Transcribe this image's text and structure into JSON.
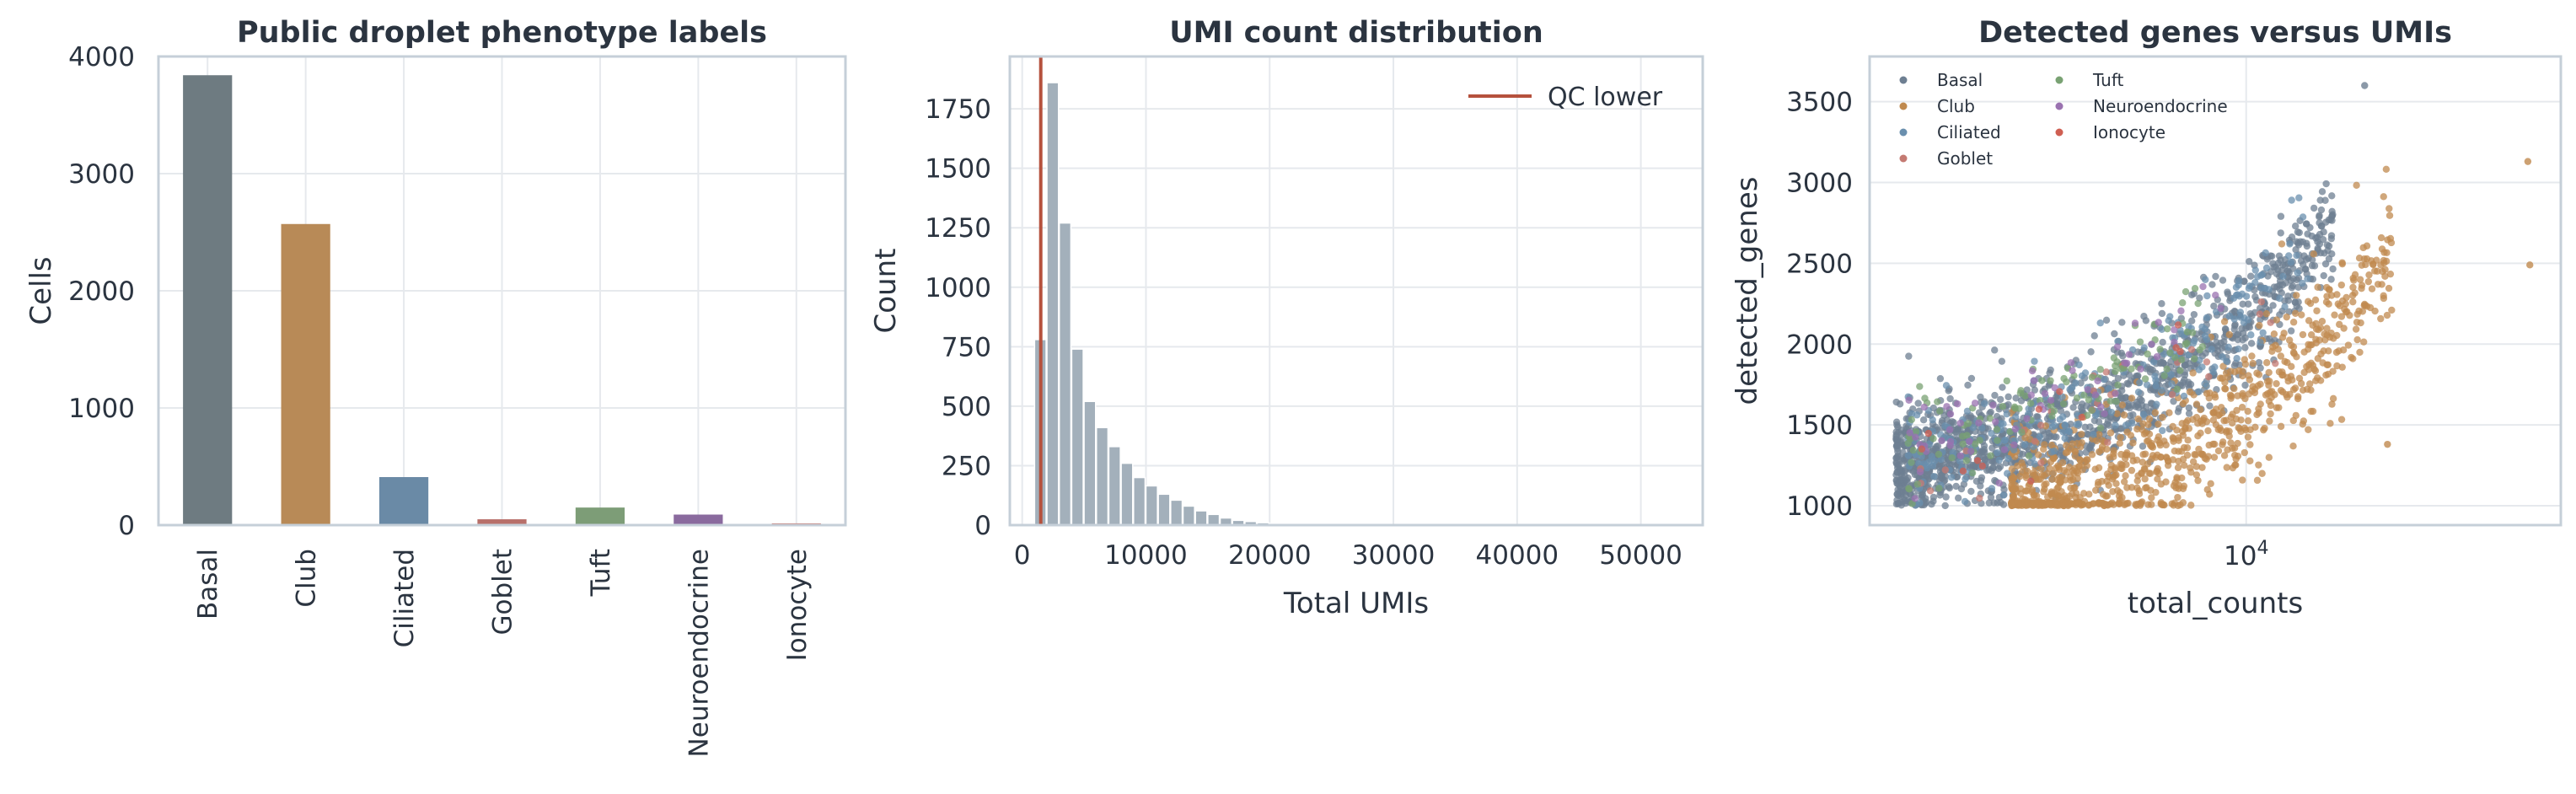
{
  "chart_data": [
    {
      "type": "bar",
      "title": "Public droplet phenotype labels",
      "xlabel": "",
      "ylabel": "Cells",
      "ylim": [
        0,
        4000
      ],
      "yticks": [
        0,
        1000,
        2000,
        3000,
        4000
      ],
      "categories": [
        "Basal",
        "Club",
        "Ciliated",
        "Goblet",
        "Tuft",
        "Neuroendocrine",
        "Ionocyte"
      ],
      "values": [
        3840,
        2570,
        410,
        50,
        150,
        90,
        15
      ],
      "colors": [
        "#6e7b81",
        "#b88a57",
        "#6a8aa6",
        "#b8706a",
        "#7d9d77",
        "#8a6a9e",
        "#c96a5e"
      ],
      "grid": true
    },
    {
      "type": "histogram",
      "title": "UMI count distribution",
      "xlabel": "Total UMIs",
      "ylabel": "Count",
      "xlim": [
        -1000,
        55000
      ],
      "ylim": [
        0,
        1970
      ],
      "xticks": [
        0,
        10000,
        20000,
        30000,
        40000,
        50000
      ],
      "yticks": [
        0,
        250,
        500,
        750,
        1000,
        1250,
        1500,
        1750
      ],
      "bin_width": 1000,
      "bin_start": 1000,
      "counts": [
        780,
        1860,
        1270,
        740,
        520,
        410,
        330,
        260,
        200,
        165,
        130,
        105,
        80,
        60,
        45,
        30,
        20,
        15,
        10,
        7,
        5,
        4,
        3,
        2,
        2,
        1,
        1,
        1,
        1,
        1
      ],
      "bar_color": "#a3b0bb",
      "reference_line": {
        "x": 1500,
        "label": "QC lower",
        "color": "#b5513d"
      },
      "legend": "top-right",
      "grid": true
    },
    {
      "type": "scatter",
      "title": "Detected genes versus UMIs",
      "xlabel": "total_counts",
      "ylabel": "detected_genes",
      "xscale": "log",
      "xlim": [
        1300,
        55000
      ],
      "ylim": [
        880,
        3780
      ],
      "xticks": [
        {
          "value": 10000,
          "base": "10",
          "exp": "4"
        }
      ],
      "yticks": [
        1000,
        1500,
        2000,
        2500,
        3000,
        3500
      ],
      "legend": "top-left",
      "grid": true,
      "series": [
        {
          "name": "Basal",
          "color": "#6e7f92",
          "n": 1400,
          "xmin": 1500,
          "xmax": 16000,
          "slope": 0.52,
          "intercept": 1050,
          "spread": 170
        },
        {
          "name": "Club",
          "color": "#c08a4f",
          "n": 950,
          "xmin": 2800,
          "xmax": 22000,
          "slope": 0.42,
          "intercept": 700,
          "spread": 220
        },
        {
          "name": "Ciliated",
          "color": "#6a8fae",
          "n": 260,
          "xmin": 1600,
          "xmax": 14000,
          "slope": 0.56,
          "intercept": 1060,
          "spread": 170
        },
        {
          "name": "Goblet",
          "color": "#c47a72",
          "n": 28,
          "xmin": 1700,
          "xmax": 12000,
          "slope": 0.5,
          "intercept": 1000,
          "spread": 150
        },
        {
          "name": "Tuft",
          "color": "#79a273",
          "n": 110,
          "xmin": 1600,
          "xmax": 8000,
          "slope": 0.6,
          "intercept": 1120,
          "spread": 160
        },
        {
          "name": "Neuroendocrine",
          "color": "#9a72b0",
          "n": 60,
          "xmin": 1600,
          "xmax": 9000,
          "slope": 0.6,
          "intercept": 1150,
          "spread": 150
        },
        {
          "name": "Ionocyte",
          "color": "#cf5f52",
          "n": 12,
          "xmin": 1700,
          "xmax": 7000,
          "slope": 0.55,
          "intercept": 1050,
          "spread": 140
        }
      ],
      "outliers": [
        {
          "x": 46000,
          "y": 3130,
          "series": "Club"
        },
        {
          "x": 46500,
          "y": 2490,
          "series": "Club"
        },
        {
          "x": 21500,
          "y": 1380,
          "series": "Club"
        },
        {
          "x": 19000,
          "y": 3600,
          "series": "Basal"
        }
      ]
    }
  ]
}
